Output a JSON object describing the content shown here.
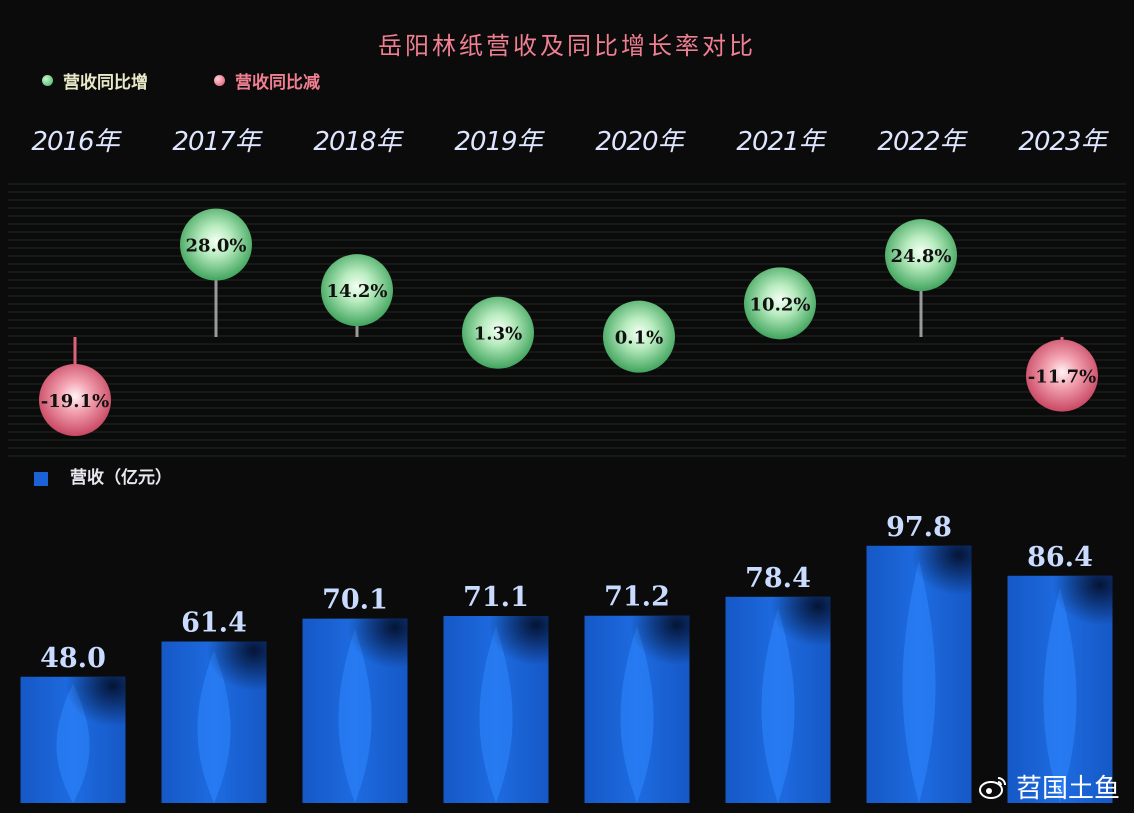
{
  "chart_data": {
    "type": "bar",
    "title": "岳阳林纸营收及同比增长率对比",
    "categories": [
      "2016年",
      "2017年",
      "2018年",
      "2019年",
      "2020年",
      "2021年",
      "2022年",
      "2023年"
    ],
    "series": [
      {
        "name": "营收（亿元）",
        "values": [
          48.0,
          61.4,
          70.1,
          71.1,
          71.2,
          78.4,
          97.8,
          86.4
        ],
        "color": "#1a62d6"
      },
      {
        "name": "同比增长率",
        "values": [
          -19.1,
          28.0,
          14.2,
          1.3,
          0.1,
          10.2,
          24.8,
          -11.7
        ]
      }
    ],
    "value_labels": [
      "48.0",
      "61.4",
      "70.1",
      "71.1",
      "71.2",
      "78.4",
      "97.8",
      "86.4"
    ],
    "growth_labels": [
      "-19.1%",
      "28.0%",
      "14.2%",
      "1.3%",
      "0.1%",
      "10.2%",
      "24.8%",
      "-11.7%"
    ],
    "legend": {
      "increase": "营收同比增",
      "decrease": "营收同比减",
      "revenue": "营收（亿元）"
    },
    "colors": {
      "increase": "#4fbf6c",
      "decrease": "#e0627a",
      "bar": "#1a62d6",
      "title": "#f07f92"
    }
  },
  "watermark": "苕国土鱼"
}
